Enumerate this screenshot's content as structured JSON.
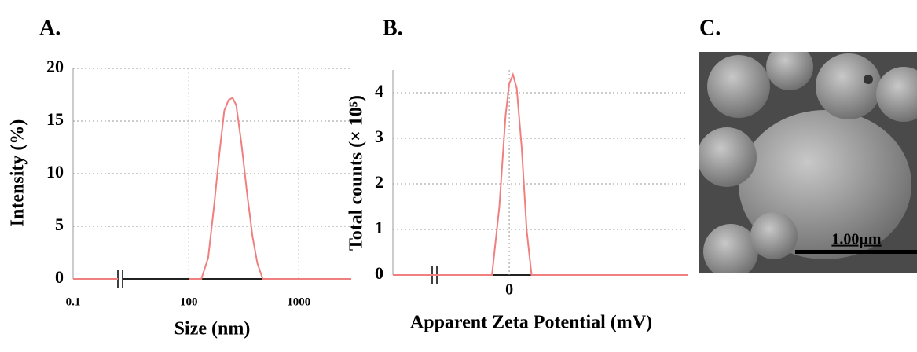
{
  "chart_data": [
    {
      "type": "line",
      "title": "A.",
      "xlabel": "Size (nm)",
      "ylabel": "Intensity (%)",
      "log_x": true,
      "xlim": [
        0.1,
        3000
      ],
      "x_break": [
        1,
        25
      ],
      "xticks": [
        0.1,
        100,
        1000
      ],
      "ylim": [
        0,
        20
      ],
      "yticks": [
        0,
        5,
        10,
        15,
        20
      ],
      "grid": true,
      "series": [
        {
          "color": "#f08080",
          "x": [
            0.1,
            1,
            25,
            100,
            130,
            150,
            170,
            190,
            210,
            230,
            250,
            270,
            300,
            340,
            380,
            420,
            470,
            600,
            3000
          ],
          "values": [
            0,
            0,
            null,
            0,
            0,
            2,
            7,
            12,
            16,
            17,
            17.2,
            16.5,
            13,
            8,
            4,
            1.5,
            0,
            0,
            0
          ]
        }
      ]
    },
    {
      "type": "line",
      "title": "B.",
      "xlabel": "Apparent Zeta Potential (mV)",
      "ylabel": "Total counts (× 10⁵)",
      "log_x": false,
      "xlim": [
        -94,
        144
      ],
      "xticks": [
        0
      ],
      "ylim": [
        0,
        4.5
      ],
      "yticks": [
        0,
        1,
        2,
        3,
        4
      ],
      "grid": true,
      "series": [
        {
          "color": "#f08080",
          "x": [
            -94,
            -14,
            -8,
            -3,
            0,
            3,
            6,
            10,
            14,
            18,
            144
          ],
          "values": [
            0,
            0,
            1.5,
            3.5,
            4.2,
            4.4,
            4.1,
            2.8,
            1,
            0,
            0
          ]
        }
      ]
    },
    {
      "type": "image",
      "title": "C.",
      "scale_bar": "1.00µm"
    }
  ]
}
